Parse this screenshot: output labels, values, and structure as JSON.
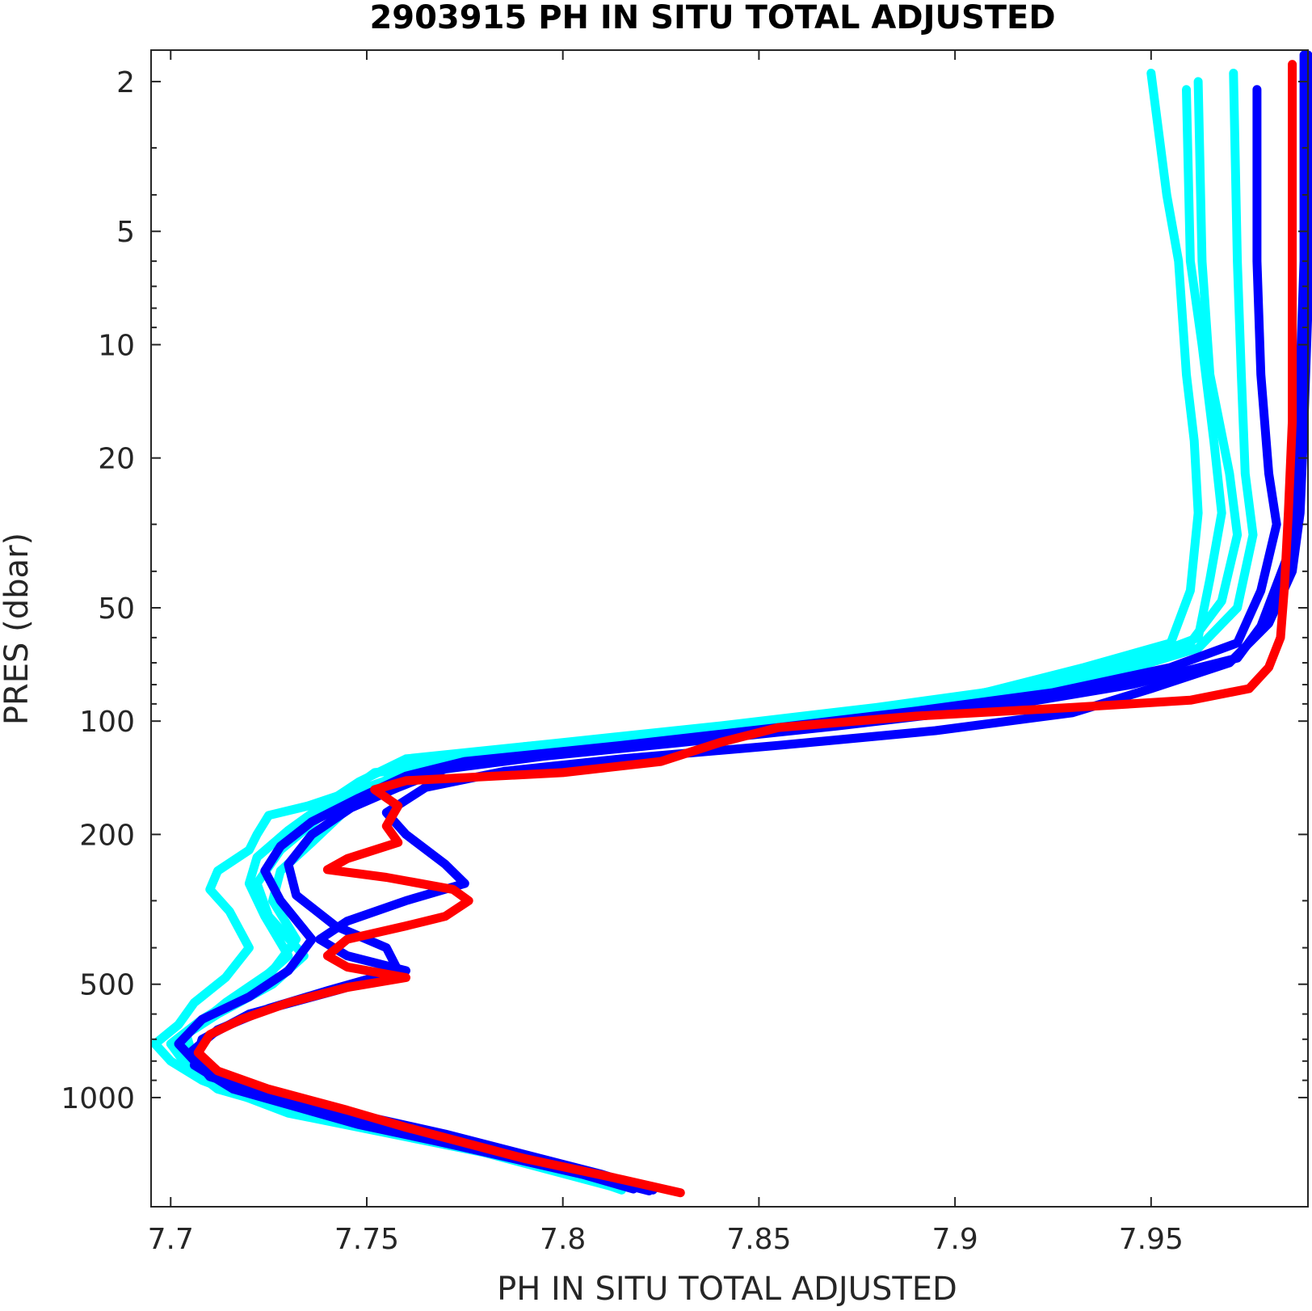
{
  "chart_data": {
    "type": "line",
    "title": "2903915  PH IN SITU TOTAL ADJUSTED",
    "xlabel": "PH IN SITU TOTAL ADJUSTED",
    "ylabel": "PRES (dbar)",
    "xlim": [
      7.695,
      7.99
    ],
    "ylim": [
      1.65,
      1950
    ],
    "y_scale": "log",
    "y_reversed": true,
    "grid": false,
    "x_ticks": [
      7.7,
      7.75,
      7.8,
      7.85,
      7.9,
      7.95
    ],
    "x_tick_labels": [
      "7.7",
      "7.75",
      "7.8",
      "7.85",
      "7.9",
      "7.95"
    ],
    "y_ticks": [
      2,
      5,
      10,
      20,
      50,
      100,
      200,
      500,
      1000
    ],
    "y_tick_labels": [
      "2",
      "5",
      "10",
      "20",
      "50",
      "100",
      "200",
      "500",
      "1000"
    ],
    "colors": {
      "older": "#00ffff",
      "recent": "#0000ff",
      "latest": "#ff0000"
    },
    "series": [
      {
        "color": "#00ffff",
        "points": [
          [
            7.95,
            1.9
          ],
          [
            7.954,
            4
          ],
          [
            7.957,
            6
          ],
          [
            7.959,
            12
          ],
          [
            7.961,
            18
          ],
          [
            7.962,
            28
          ],
          [
            7.96,
            45
          ],
          [
            7.955,
            62
          ],
          [
            7.933,
            72
          ],
          [
            7.9,
            88
          ],
          [
            7.86,
            104
          ],
          [
            7.83,
            112
          ],
          [
            7.8,
            120
          ],
          [
            7.78,
            128
          ],
          [
            7.752,
            137
          ],
          [
            7.745,
            155
          ],
          [
            7.735,
            168
          ],
          [
            7.725,
            178
          ],
          [
            7.722,
            200
          ],
          [
            7.72,
            220
          ],
          [
            7.712,
            250
          ],
          [
            7.71,
            280
          ],
          [
            7.715,
            320
          ],
          [
            7.72,
            400
          ],
          [
            7.714,
            480
          ],
          [
            7.706,
            560
          ],
          [
            7.702,
            640
          ],
          [
            7.696,
            720
          ],
          [
            7.7,
            800
          ],
          [
            7.708,
            900
          ],
          [
            7.73,
            1100
          ],
          [
            7.78,
            1400
          ],
          [
            7.815,
            1750
          ]
        ]
      },
      {
        "color": "#00ffff",
        "points": [
          [
            7.959,
            2.1
          ],
          [
            7.96,
            6
          ],
          [
            7.963,
            10
          ],
          [
            7.966,
            18
          ],
          [
            7.968,
            28
          ],
          [
            7.965,
            42
          ],
          [
            7.962,
            60
          ],
          [
            7.945,
            70
          ],
          [
            7.915,
            82
          ],
          [
            7.88,
            92
          ],
          [
            7.84,
            103
          ],
          [
            7.8,
            114
          ],
          [
            7.76,
            126
          ],
          [
            7.748,
            145
          ],
          [
            7.738,
            170
          ],
          [
            7.73,
            195
          ],
          [
            7.722,
            230
          ],
          [
            7.72,
            270
          ],
          [
            7.724,
            330
          ],
          [
            7.73,
            420
          ],
          [
            7.72,
            520
          ],
          [
            7.708,
            620
          ],
          [
            7.7,
            720
          ],
          [
            7.704,
            820
          ],
          [
            7.712,
            950
          ],
          [
            7.74,
            1150
          ],
          [
            7.79,
            1450
          ],
          [
            7.82,
            1700
          ]
        ]
      },
      {
        "color": "#00ffff",
        "points": [
          [
            7.962,
            2.0
          ],
          [
            7.963,
            6
          ],
          [
            7.965,
            12
          ],
          [
            7.97,
            22
          ],
          [
            7.972,
            32
          ],
          [
            7.968,
            48
          ],
          [
            7.96,
            62
          ],
          [
            7.94,
            72
          ],
          [
            7.905,
            85
          ],
          [
            7.87,
            96
          ],
          [
            7.83,
            107
          ],
          [
            7.79,
            117
          ],
          [
            7.76,
            130
          ],
          [
            7.752,
            152
          ],
          [
            7.744,
            175
          ],
          [
            7.736,
            210
          ],
          [
            7.728,
            250
          ],
          [
            7.726,
            300
          ],
          [
            7.732,
            380
          ],
          [
            7.726,
            460
          ],
          [
            7.714,
            560
          ],
          [
            7.704,
            680
          ],
          [
            7.706,
            800
          ],
          [
            7.716,
            930
          ],
          [
            7.745,
            1150
          ],
          [
            7.795,
            1500
          ],
          [
            7.818,
            1740
          ]
        ]
      },
      {
        "color": "#00ffff",
        "points": [
          [
            7.971,
            1.9
          ],
          [
            7.972,
            6
          ],
          [
            7.973,
            12
          ],
          [
            7.974,
            22
          ],
          [
            7.976,
            32
          ],
          [
            7.972,
            50
          ],
          [
            7.962,
            64
          ],
          [
            7.942,
            74
          ],
          [
            7.91,
            86
          ],
          [
            7.875,
            96
          ],
          [
            7.84,
            105
          ],
          [
            7.8,
            118
          ],
          [
            7.765,
            132
          ],
          [
            7.75,
            150
          ],
          [
            7.738,
            180
          ],
          [
            7.728,
            220
          ],
          [
            7.722,
            270
          ],
          [
            7.725,
            330
          ],
          [
            7.734,
            420
          ],
          [
            7.726,
            500
          ],
          [
            7.712,
            600
          ],
          [
            7.702,
            700
          ],
          [
            7.705,
            820
          ],
          [
            7.718,
            950
          ],
          [
            7.75,
            1200
          ],
          [
            7.8,
            1550
          ],
          [
            7.815,
            1760
          ]
        ]
      },
      {
        "color": "#0000ff",
        "points": [
          [
            7.977,
            2.1
          ],
          [
            7.977,
            6
          ],
          [
            7.978,
            12
          ],
          [
            7.98,
            22
          ],
          [
            7.982,
            30
          ],
          [
            7.978,
            45
          ],
          [
            7.972,
            62
          ],
          [
            7.955,
            72
          ],
          [
            7.925,
            84
          ],
          [
            7.89,
            94
          ],
          [
            7.855,
            104
          ],
          [
            7.815,
            116
          ],
          [
            7.775,
            128
          ],
          [
            7.76,
            140
          ],
          [
            7.748,
            160
          ],
          [
            7.736,
            185
          ],
          [
            7.728,
            215
          ],
          [
            7.724,
            250
          ],
          [
            7.728,
            300
          ],
          [
            7.736,
            380
          ],
          [
            7.73,
            460
          ],
          [
            7.72,
            540
          ],
          [
            7.708,
            620
          ],
          [
            7.702,
            720
          ],
          [
            7.708,
            840
          ],
          [
            7.722,
            980
          ],
          [
            7.76,
            1250
          ],
          [
            7.805,
            1600
          ],
          [
            7.818,
            1750
          ]
        ]
      },
      {
        "color": "#0000ff",
        "points": [
          [
            7.989,
            1.7
          ],
          [
            7.989,
            6
          ],
          [
            7.988,
            12
          ],
          [
            7.987,
            24
          ],
          [
            7.985,
            36
          ],
          [
            7.978,
            56
          ],
          [
            7.972,
            68
          ],
          [
            7.945,
            80
          ],
          [
            7.91,
            92
          ],
          [
            7.87,
            103
          ],
          [
            7.83,
            114
          ],
          [
            7.795,
            124
          ],
          [
            7.77,
            134
          ],
          [
            7.758,
            150
          ],
          [
            7.746,
            170
          ],
          [
            7.736,
            200
          ],
          [
            7.73,
            240
          ],
          [
            7.732,
            290
          ],
          [
            7.742,
            350
          ],
          [
            7.755,
            400
          ],
          [
            7.758,
            460
          ],
          [
            7.74,
            520
          ],
          [
            7.725,
            580
          ],
          [
            7.712,
            660
          ],
          [
            7.705,
            760
          ],
          [
            7.71,
            880
          ],
          [
            7.728,
            1000
          ],
          [
            7.77,
            1250
          ],
          [
            7.81,
            1600
          ],
          [
            7.823,
            1760
          ]
        ]
      },
      {
        "color": "#0000ff",
        "points": [
          [
            7.99,
            1.7
          ],
          [
            7.99,
            8
          ],
          [
            7.989,
            16
          ],
          [
            7.988,
            28
          ],
          [
            7.986,
            40
          ],
          [
            7.98,
            55
          ],
          [
            7.97,
            70
          ],
          [
            7.95,
            82
          ],
          [
            7.93,
            95
          ],
          [
            7.895,
            106
          ],
          [
            7.855,
            116
          ],
          [
            7.815,
            126
          ],
          [
            7.785,
            136
          ],
          [
            7.765,
            150
          ],
          [
            7.755,
            175
          ],
          [
            7.76,
            200
          ],
          [
            7.77,
            240
          ],
          [
            7.775,
            270
          ],
          [
            7.76,
            300
          ],
          [
            7.745,
            340
          ],
          [
            7.738,
            380
          ],
          [
            7.745,
            420
          ],
          [
            7.76,
            460
          ],
          [
            7.742,
            520
          ],
          [
            7.72,
            600
          ],
          [
            7.708,
            700
          ],
          [
            7.706,
            820
          ],
          [
            7.716,
            950
          ],
          [
            7.748,
            1180
          ],
          [
            7.795,
            1500
          ],
          [
            7.822,
            1770
          ]
        ]
      },
      {
        "color": "#ff0000",
        "points": [
          [
            7.986,
            1.8
          ],
          [
            7.986,
            8
          ],
          [
            7.986,
            16
          ],
          [
            7.985,
            28
          ],
          [
            7.984,
            44
          ],
          [
            7.983,
            60
          ],
          [
            7.98,
            72
          ],
          [
            7.975,
            82
          ],
          [
            7.96,
            88
          ],
          [
            7.93,
            92
          ],
          [
            7.89,
            97
          ],
          [
            7.855,
            104
          ],
          [
            7.84,
            114
          ],
          [
            7.825,
            128
          ],
          [
            7.8,
            137
          ],
          [
            7.76,
            144
          ],
          [
            7.752,
            152
          ],
          [
            7.758,
            168
          ],
          [
            7.755,
            190
          ],
          [
            7.758,
            210
          ],
          [
            7.745,
            232
          ],
          [
            7.74,
            248
          ],
          [
            7.755,
            260
          ],
          [
            7.772,
            280
          ],
          [
            7.776,
            300
          ],
          [
            7.77,
            330
          ],
          [
            7.76,
            350
          ],
          [
            7.745,
            380
          ],
          [
            7.74,
            420
          ],
          [
            7.745,
            450
          ],
          [
            7.76,
            480
          ],
          [
            7.745,
            510
          ],
          [
            7.73,
            560
          ],
          [
            7.718,
            620
          ],
          [
            7.71,
            680
          ],
          [
            7.707,
            760
          ],
          [
            7.712,
            850
          ],
          [
            7.725,
            950
          ],
          [
            7.745,
            1080
          ],
          [
            7.76,
            1200
          ],
          [
            7.79,
            1450
          ],
          [
            7.815,
            1650
          ],
          [
            7.83,
            1790
          ]
        ]
      }
    ]
  }
}
